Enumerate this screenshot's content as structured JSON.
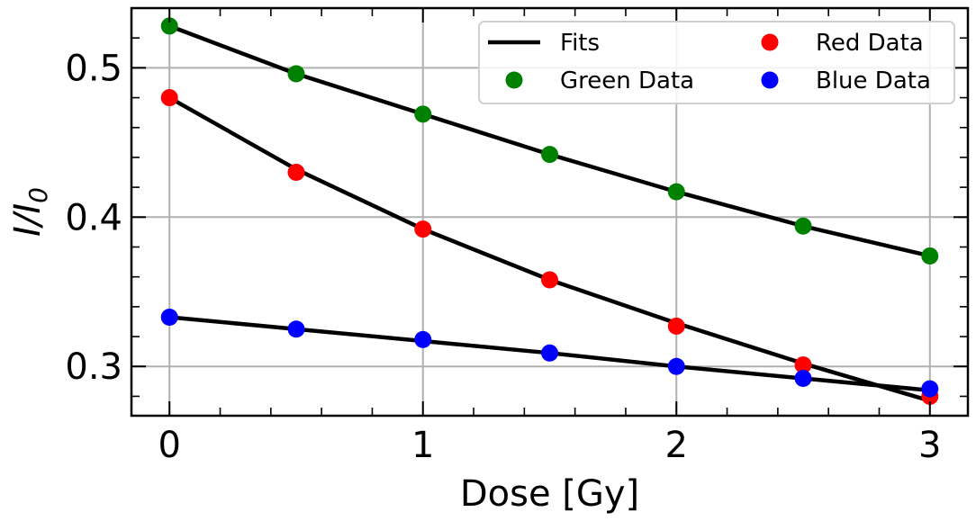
{
  "chart_data": {
    "type": "scatter",
    "xlabel": "Dose [Gy]",
    "ylabel": {
      "base": "I/I",
      "sub": "0"
    },
    "xlim": [
      -0.15,
      3.15
    ],
    "ylim": [
      0.267,
      0.54
    ],
    "x_ticks": [
      0,
      1,
      2,
      3
    ],
    "x_tick_labels": [
      "0",
      "1",
      "2",
      "3"
    ],
    "y_ticks": [
      0.3,
      0.4,
      0.5
    ],
    "y_tick_labels": [
      "0.3",
      "0.4",
      "0.5"
    ],
    "x_minor_step": 0.2,
    "y_minor_step": 0.02,
    "grid": true,
    "legend_position": "upper-right",
    "legend_columns": 2,
    "x": [
      0,
      0.5,
      1,
      1.5,
      2,
      2.5,
      3
    ],
    "series": [
      {
        "name": "Green Data",
        "color": "#008000",
        "values": [
          0.528,
          0.496,
          0.469,
          0.442,
          0.417,
          0.394,
          0.374
        ]
      },
      {
        "name": "Red Data",
        "color": "#ff0000",
        "values": [
          0.48,
          0.43,
          0.392,
          0.358,
          0.327,
          0.301,
          0.28
        ]
      },
      {
        "name": "Blue Data",
        "color": "#0000ff",
        "values": [
          0.333,
          0.325,
          0.318,
          0.309,
          0.3,
          0.292,
          0.285
        ]
      }
    ],
    "fits": {
      "name": "Fits",
      "color": "#000000",
      "lines": [
        {
          "x": [
            0,
            0.5,
            1,
            1.5,
            2,
            2.5,
            3
          ],
          "y": [
            0.528,
            0.496,
            0.469,
            0.442,
            0.417,
            0.394,
            0.374
          ]
        },
        {
          "x": [
            0,
            0.5,
            1,
            1.5,
            2,
            2.5,
            3
          ],
          "y": [
            0.48,
            0.432,
            0.392,
            0.358,
            0.329,
            0.302,
            0.277
          ]
        },
        {
          "x": [
            0,
            0.5,
            1,
            1.5,
            2,
            2.5,
            3
          ],
          "y": [
            0.333,
            0.325,
            0.317,
            0.309,
            0.3,
            0.292,
            0.284
          ]
        }
      ]
    },
    "legend": [
      {
        "label": "Fits",
        "kind": "line",
        "color": "#000000"
      },
      {
        "label": "Red Data",
        "kind": "marker",
        "color": "#ff0000"
      },
      {
        "label": "Green Data",
        "kind": "marker",
        "color": "#008000"
      },
      {
        "label": "Blue Data",
        "kind": "marker",
        "color": "#0000ff"
      }
    ]
  }
}
